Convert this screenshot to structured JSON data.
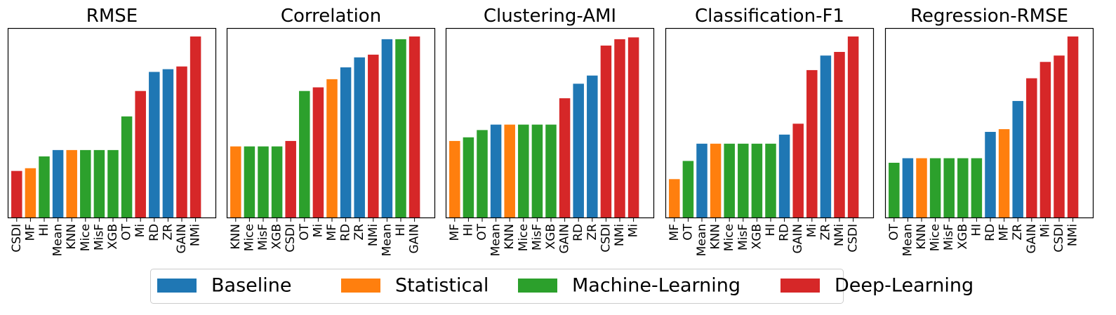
{
  "chart_data": {
    "type": "bar",
    "value_note": "relative rank heights; y axis unlabeled",
    "groups": {
      "Baseline": "#1f77b4",
      "Statistical": "#ff7f0e",
      "Machine-Learning": "#2ca02c",
      "Deep-Learning": "#d62728"
    },
    "legend": {
      "placement": "bottom-center",
      "entries": [
        "Baseline",
        "Statistical",
        "Machine-Learning",
        "Deep-Learning"
      ]
    },
    "panels": [
      {
        "title": "RMSE",
        "categories": [
          "CSDI",
          "MF",
          "HI",
          "Mean",
          "KNN",
          "Mice",
          "MisF",
          "XGB",
          "OT",
          "Mi",
          "RD",
          "ZR",
          "GAIN",
          "NMi"
        ],
        "groups": [
          "Deep-Learning",
          "Statistical",
          "Machine-Learning",
          "Baseline",
          "Statistical",
          "Machine-Learning",
          "Machine-Learning",
          "Machine-Learning",
          "Machine-Learning",
          "Deep-Learning",
          "Baseline",
          "Baseline",
          "Deep-Learning",
          "Deep-Learning"
        ],
        "values": [
          26,
          27.5,
          34,
          37.5,
          37.5,
          37.5,
          37.5,
          37.5,
          56,
          70,
          80.5,
          82,
          83.5,
          100
        ]
      },
      {
        "title": "Correlation",
        "categories": [
          "KNN",
          "Mice",
          "MisF",
          "XGB",
          "CSDI",
          "OT",
          "Mi",
          "MF",
          "RD",
          "ZR",
          "NMi",
          "Mean",
          "HI",
          "GAIN"
        ],
        "groups": [
          "Statistical",
          "Machine-Learning",
          "Machine-Learning",
          "Machine-Learning",
          "Deep-Learning",
          "Machine-Learning",
          "Deep-Learning",
          "Statistical",
          "Baseline",
          "Baseline",
          "Deep-Learning",
          "Baseline",
          "Machine-Learning",
          "Deep-Learning"
        ],
        "values": [
          39.5,
          39.5,
          39.5,
          39.5,
          42.5,
          70,
          72,
          76.5,
          83,
          88.5,
          90,
          98.5,
          98.5,
          100
        ]
      },
      {
        "title": "Clustering-AMI",
        "categories": [
          "MF",
          "HI",
          "OT",
          "Mean",
          "KNN",
          "Mice",
          "MisF",
          "XGB",
          "GAIN",
          "RD",
          "ZR",
          "CSDI",
          "NMi",
          "Mi"
        ],
        "groups": [
          "Statistical",
          "Machine-Learning",
          "Machine-Learning",
          "Baseline",
          "Statistical",
          "Machine-Learning",
          "Machine-Learning",
          "Machine-Learning",
          "Deep-Learning",
          "Baseline",
          "Baseline",
          "Deep-Learning",
          "Deep-Learning",
          "Deep-Learning"
        ],
        "values": [
          42.5,
          44.5,
          48.5,
          51.5,
          51.5,
          51.5,
          51.5,
          51.5,
          66,
          74,
          78.5,
          95,
          98.5,
          99.5
        ]
      },
      {
        "title": "Classification-F1",
        "categories": [
          "MF",
          "OT",
          "Mean",
          "KNN",
          "Mice",
          "MisF",
          "XGB",
          "HI",
          "RD",
          "GAIN",
          "Mi",
          "ZR",
          "NMi",
          "CSDI"
        ],
        "groups": [
          "Statistical",
          "Machine-Learning",
          "Baseline",
          "Statistical",
          "Machine-Learning",
          "Machine-Learning",
          "Machine-Learning",
          "Machine-Learning",
          "Baseline",
          "Deep-Learning",
          "Deep-Learning",
          "Baseline",
          "Deep-Learning",
          "Deep-Learning"
        ],
        "values": [
          21.5,
          31.5,
          41,
          41,
          41,
          41,
          41,
          41,
          46,
          52,
          81.5,
          89.5,
          91.5,
          100
        ]
      },
      {
        "title": "Regression-RMSE",
        "categories": [
          "OT",
          "Mean",
          "KNN",
          "Mice",
          "MisF",
          "XGB",
          "HI",
          "RD",
          "MF",
          "ZR",
          "GAIN",
          "Mi",
          "CSDI",
          "NMi"
        ],
        "groups": [
          "Machine-Learning",
          "Baseline",
          "Statistical",
          "Machine-Learning",
          "Machine-Learning",
          "Machine-Learning",
          "Machine-Learning",
          "Baseline",
          "Statistical",
          "Baseline",
          "Deep-Learning",
          "Deep-Learning",
          "Deep-Learning",
          "Deep-Learning"
        ],
        "values": [
          30.5,
          33,
          33,
          33,
          33,
          33,
          33,
          47.5,
          49,
          64.5,
          77,
          86,
          89.5,
          100
        ]
      }
    ]
  }
}
